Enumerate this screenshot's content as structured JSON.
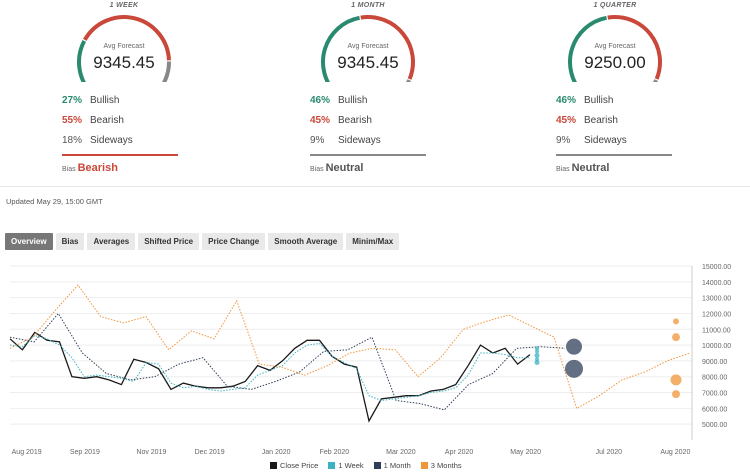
{
  "panels": [
    {
      "period": "1 WEEK",
      "gauge_label": "Avg Forecast",
      "value": "9345.45",
      "bullish_pct": "27%",
      "bullish_label": "Bullish",
      "bearish_pct": "55%",
      "bearish_label": "Bearish",
      "sideways_pct": "18%",
      "sideways_label": "Sideways",
      "bias_label": "Bias",
      "bias_value": "Bearish",
      "gauge_split": {
        "bullish": 0.27,
        "bearish": 0.55,
        "sideways": 0.18
      }
    },
    {
      "period": "1 MONTH",
      "gauge_label": "Avg Forecast",
      "value": "9345.45",
      "bullish_pct": "46%",
      "bullish_label": "Bullish",
      "bearish_pct": "45%",
      "bearish_label": "Bearish",
      "sideways_pct": "9%",
      "sideways_label": "Sideways",
      "bias_label": "Bias",
      "bias_value": "Neutral",
      "gauge_split": {
        "bullish": 0.46,
        "bearish": 0.45,
        "sideways": 0.09
      }
    },
    {
      "period": "1 QUARTER",
      "gauge_label": "Avg Forecast",
      "value": "9250.00",
      "bullish_pct": "46%",
      "bullish_label": "Bullish",
      "bearish_pct": "45%",
      "bearish_label": "Bearish",
      "sideways_pct": "9%",
      "sideways_label": "Sideways",
      "bias_label": "Bias",
      "bias_value": "Neutral",
      "gauge_split": {
        "bullish": 0.46,
        "bearish": 0.45,
        "sideways": 0.09
      }
    }
  ],
  "updated": "Updated May 29, 15:00 GMT",
  "tabs": [
    "Overview",
    "Bias",
    "Averages",
    "Shifted Price",
    "Price Change",
    "Smooth Average",
    "Minim/Max"
  ],
  "colors": {
    "bullish": "#2a8a6f",
    "bearish": "#c9483a",
    "sideways": "#888888",
    "close": "#1a1a1a",
    "week": "#3bb3c3",
    "month": "#2f3f5a",
    "quarter": "#f0953a"
  },
  "chart_data": {
    "type": "line",
    "x_ticks": [
      "Aug 2019",
      "Sep 2019",
      "Nov 2019",
      "Dec 2019",
      "Jan 2020",
      "Feb 2020",
      "Mar 2020",
      "Apr 2020",
      "May 2020",
      "Jul 2020",
      "Aug 2020"
    ],
    "y_ticks": [
      "15000.00",
      "14000.00",
      "13000.00",
      "12000.00",
      "11000.00",
      "10000.00",
      "9000.00",
      "8000.00",
      "7000.00",
      "6000.00",
      "5000.00"
    ],
    "ylim": [
      4000,
      15000
    ],
    "legend": [
      "Close Price",
      "1 Week",
      "1 Month",
      "3 Months"
    ],
    "legend_position": "bottom",
    "series": [
      {
        "name": "Close Price",
        "style": "solid",
        "color": "#1a1a1a",
        "x": [
          0,
          1,
          2,
          3,
          4,
          5,
          6,
          7,
          8,
          9,
          10,
          11,
          12,
          13,
          14,
          15,
          16,
          17,
          18,
          19,
          20,
          21,
          22,
          23,
          24,
          25,
          26,
          27,
          28,
          29,
          30,
          31,
          32,
          33,
          34,
          35,
          36,
          37,
          38,
          39,
          40,
          41,
          42
        ],
        "y": [
          10400,
          9700,
          10800,
          10300,
          10200,
          8000,
          7900,
          8000,
          7800,
          7500,
          9100,
          8900,
          8500,
          7200,
          7600,
          7400,
          7300,
          7300,
          7400,
          7700,
          8700,
          8400,
          9000,
          9800,
          10300,
          10300,
          9300,
          8800,
          8600,
          5200,
          6600,
          6700,
          6800,
          6800,
          7100,
          7200,
          7500,
          8700,
          10000,
          9500,
          9800,
          8800,
          9400
        ]
      },
      {
        "name": "1 Week",
        "style": "dotted",
        "color": "#3bb3c3",
        "x": [
          0,
          1,
          2,
          3,
          4,
          5,
          6,
          7,
          8,
          9,
          10,
          11,
          12,
          13,
          14,
          15,
          16,
          17,
          18,
          19,
          20,
          21,
          22,
          23,
          24,
          25,
          26,
          27,
          28,
          29,
          30,
          31,
          32,
          33,
          34,
          35,
          36,
          37,
          38,
          39,
          40,
          41,
          42
        ],
        "y": [
          10000,
          9900,
          10600,
          10400,
          10000,
          9200,
          8000,
          8100,
          8000,
          7900,
          7700,
          8900,
          8800,
          7600,
          7300,
          7400,
          7200,
          7100,
          7200,
          7300,
          8100,
          8400,
          8700,
          9500,
          10000,
          10100,
          9300,
          8900,
          8500,
          6800,
          6500,
          6600,
          6700,
          6800,
          7000,
          7100,
          7300,
          8100,
          9500,
          9500,
          9400,
          9200,
          9200
        ]
      },
      {
        "name": "1 Month",
        "style": "dotted",
        "color": "#2f3f5a",
        "x": [
          0,
          2,
          4,
          6,
          8,
          10,
          12,
          14,
          16,
          18,
          20,
          22,
          24,
          26,
          28,
          30,
          32,
          34,
          36,
          38,
          40,
          42,
          44,
          46
        ],
        "y": [
          10500,
          10200,
          12000,
          9500,
          8200,
          7800,
          8000,
          8800,
          9200,
          7400,
          7200,
          7700,
          8300,
          9600,
          9700,
          10500,
          6500,
          6300,
          5900,
          7500,
          8200,
          9800,
          9900,
          9800
        ]
      },
      {
        "name": "3 Months",
        "style": "dotted",
        "color": "#f0953a",
        "x": [
          0,
          2,
          4,
          6,
          8,
          10,
          12,
          14,
          16,
          18,
          20,
          22,
          24,
          26,
          28,
          30,
          32,
          34,
          36,
          38,
          40,
          42,
          44,
          46,
          48,
          50,
          52,
          54,
          56,
          58,
          60
        ],
        "y": [
          9800,
          10500,
          12200,
          13800,
          11800,
          11400,
          11800,
          9700,
          10900,
          10400,
          12800,
          8800,
          8600,
          8100,
          8700,
          9500,
          9800,
          9700,
          8000,
          9200,
          11000,
          11500,
          11900,
          11200,
          10500,
          6000,
          6800,
          7800,
          8300,
          9000,
          9500
        ]
      }
    ],
    "forecast_points": [
      {
        "name": "1 Week",
        "color": "#3bb3c3",
        "x": 43.5,
        "y": [
          9345,
          9600,
          9100,
          9800,
          8900
        ]
      },
      {
        "name": "1 Month",
        "color": "#2f3f5a",
        "x": 47,
        "y": [
          9900,
          8500
        ]
      },
      {
        "name": "3 Months",
        "color": "#f0953a",
        "x": 57,
        "y": [
          11500,
          10500,
          7800,
          6900
        ]
      }
    ]
  }
}
